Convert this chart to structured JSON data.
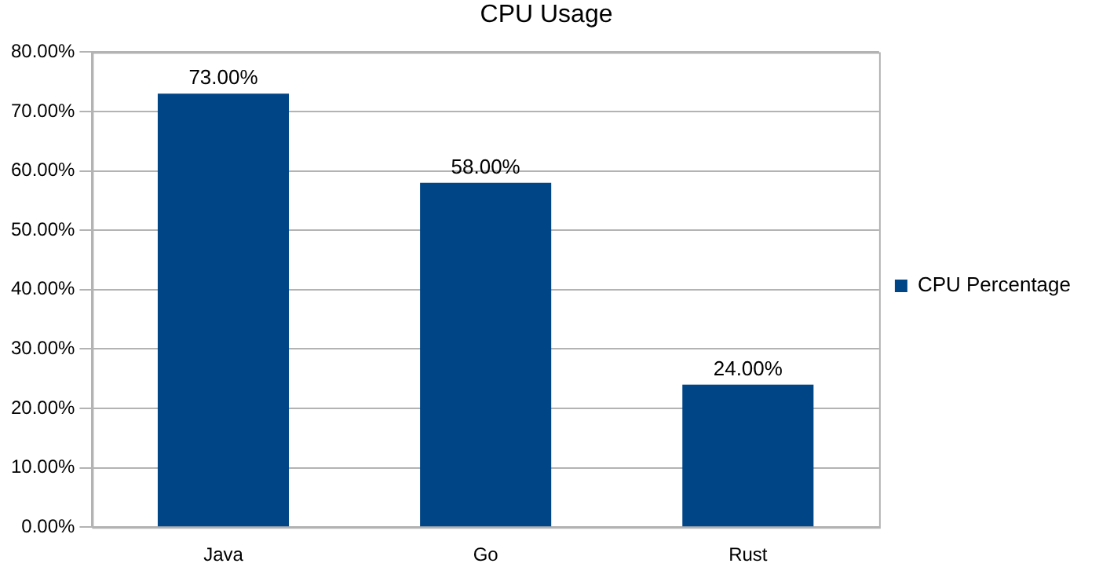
{
  "chart_data": {
    "type": "bar",
    "title": "CPU Usage",
    "categories": [
      "Java",
      "Go",
      "Rust"
    ],
    "series": [
      {
        "name": "CPU Percentage",
        "color": "#004586",
        "values": [
          73,
          58,
          24
        ],
        "value_labels": [
          "73.00%",
          "58.00%",
          "24.00%"
        ]
      }
    ],
    "ylim": [
      0,
      80
    ],
    "yticks": [
      {
        "value": 0,
        "label": "0.00%"
      },
      {
        "value": 10,
        "label": "10.00%"
      },
      {
        "value": 20,
        "label": "20.00%"
      },
      {
        "value": 30,
        "label": "30.00%"
      },
      {
        "value": 40,
        "label": "40.00%"
      },
      {
        "value": 50,
        "label": "50.00%"
      },
      {
        "value": 60,
        "label": "60.00%"
      },
      {
        "value": 70,
        "label": "70.00%"
      },
      {
        "value": 80,
        "label": "80.00%"
      }
    ],
    "grid": "y",
    "legend": "right"
  }
}
